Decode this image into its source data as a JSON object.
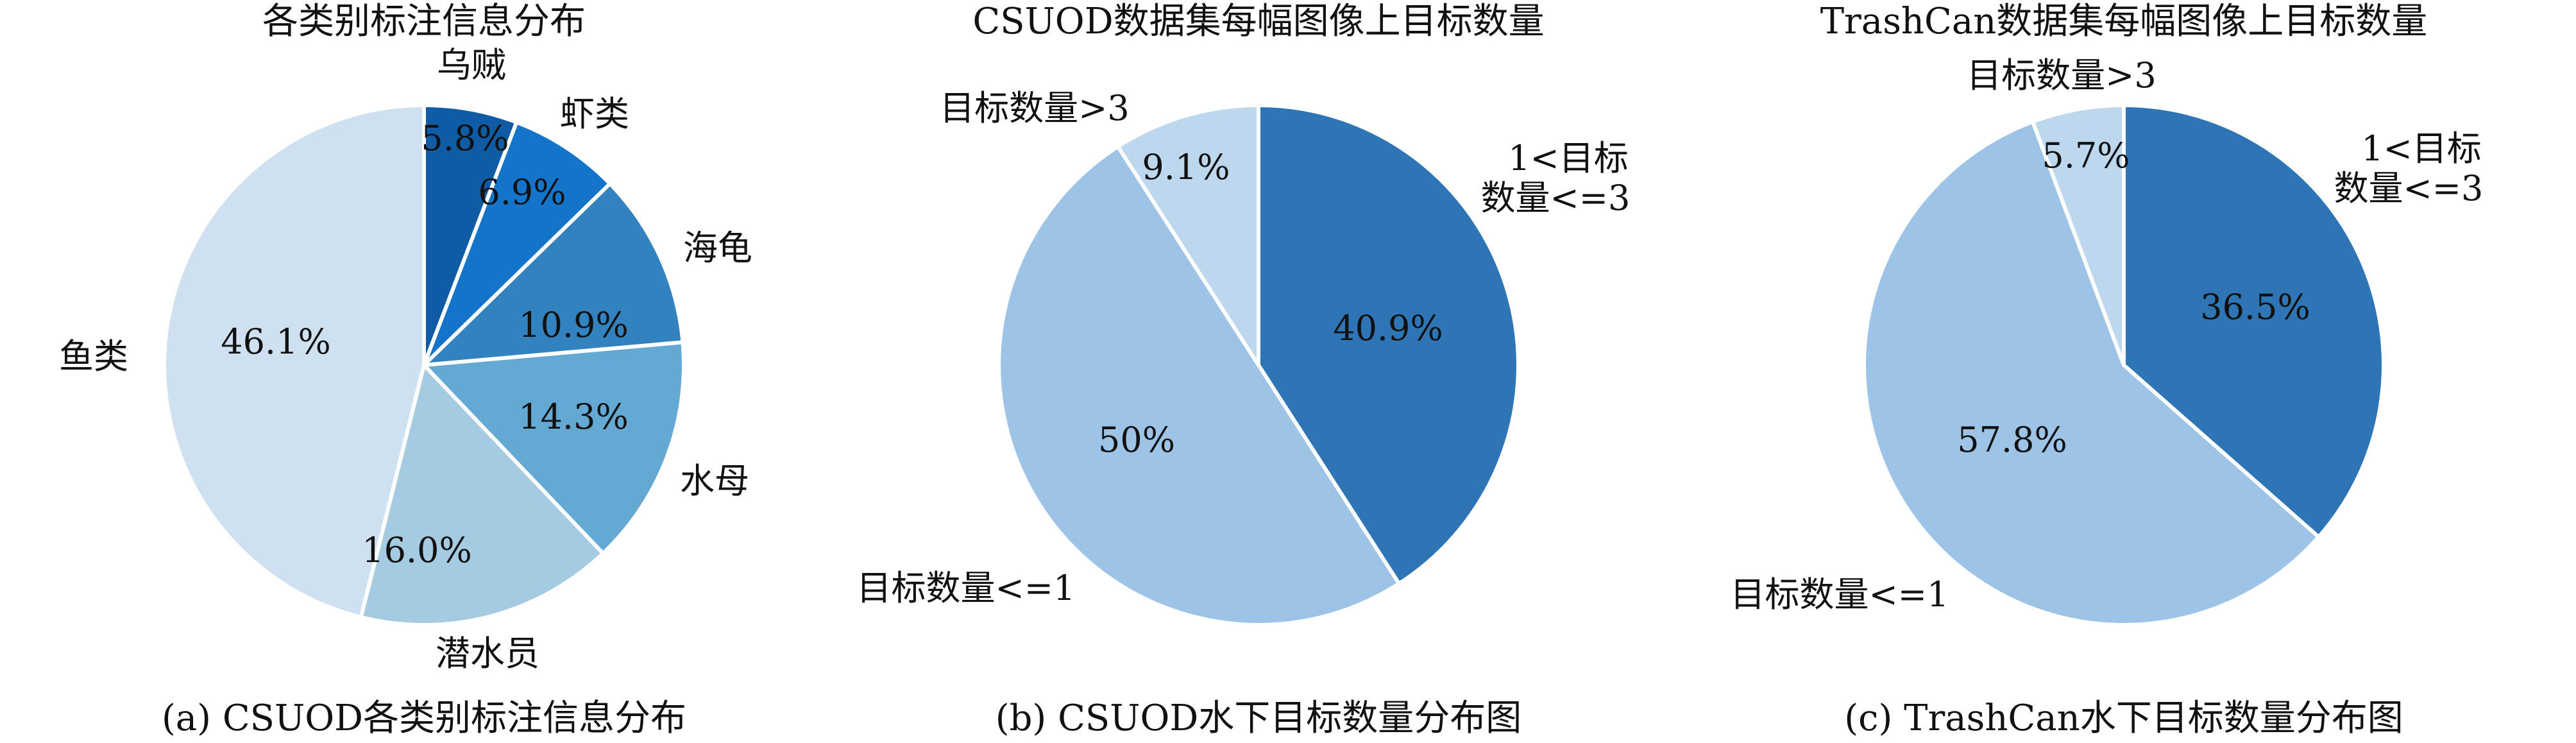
{
  "chart_data": [
    {
      "type": "pie",
      "title": "各类别标注信息分布",
      "caption": "(a) CSUOD各类别标注信息分布",
      "start": "top",
      "direction": "clockwise",
      "slices": [
        {
          "label": "乌贼",
          "value": 5.8,
          "text": "5.8%",
          "color": "#0f5ba4"
        },
        {
          "label": "虾类",
          "value": 6.9,
          "text": "6.9%",
          "color": "#1474c9"
        },
        {
          "label": "海龟",
          "value": 10.9,
          "text": "10.9%",
          "color": "#3282bf"
        },
        {
          "label": "水母",
          "value": 14.3,
          "text": "14.3%",
          "color": "#64a8d4"
        },
        {
          "label": "潜水员",
          "value": 16.0,
          "text": "16.0%",
          "color": "#a4cbe2"
        },
        {
          "label": "鱼类",
          "value": 46.1,
          "text": "46.1%",
          "color": "#cfe1f1"
        }
      ]
    },
    {
      "type": "pie",
      "title": "CSUOD数据集每幅图像上目标数量",
      "caption": "(b) CSUOD水下目标数量分布图",
      "start": "top",
      "direction": "clockwise",
      "slices": [
        {
          "label": [
            "1<目标",
            "数量<=3"
          ],
          "value": 40.9,
          "text": "40.9%",
          "color": "#2e75b6"
        },
        {
          "label": [
            "目标数量<=1"
          ],
          "value": 50,
          "text": "50%",
          "color": "#9dc3e6"
        },
        {
          "label": [
            "目标数量>3"
          ],
          "value": 9.1,
          "text": "9.1%",
          "color": "#bdd7ee"
        }
      ]
    },
    {
      "type": "pie",
      "title": "TrashCan数据集每幅图像上目标数量",
      "caption": "(c) TrashCan水下目标数量分布图",
      "start": "top",
      "direction": "clockwise",
      "slices": [
        {
          "label": [
            "1<目标",
            "数量<=3"
          ],
          "value": 36.5,
          "text": "36.5%",
          "color": "#2e75b6"
        },
        {
          "label": [
            "目标数量<=1"
          ],
          "value": 57.8,
          "text": "57.8%",
          "color": "#9dc3e6"
        },
        {
          "label": [
            "目标数量>3"
          ],
          "value": 5.7,
          "text": "5.7%",
          "color": "#bdd7ee"
        }
      ]
    }
  ]
}
